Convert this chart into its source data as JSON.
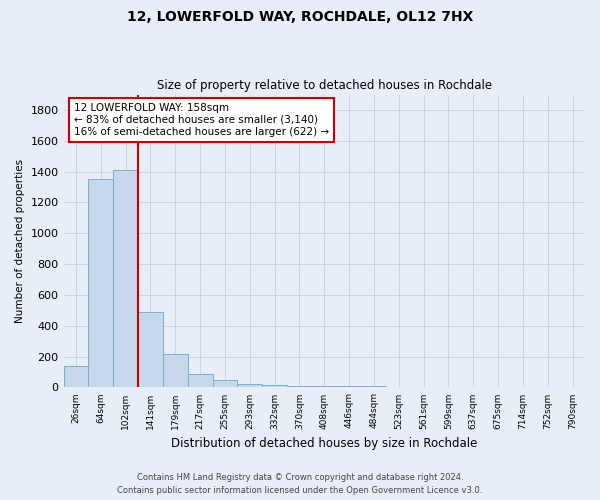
{
  "title": "12, LOWERFOLD WAY, ROCHDALE, OL12 7HX",
  "subtitle": "Size of property relative to detached houses in Rochdale",
  "xlabel": "Distribution of detached houses by size in Rochdale",
  "ylabel": "Number of detached properties",
  "footnote1": "Contains HM Land Registry data © Crown copyright and database right 2024.",
  "footnote2": "Contains public sector information licensed under the Open Government Licence v3.0.",
  "categories": [
    "26sqm",
    "64sqm",
    "102sqm",
    "141sqm",
    "179sqm",
    "217sqm",
    "255sqm",
    "293sqm",
    "332sqm",
    "370sqm",
    "408sqm",
    "446sqm",
    "484sqm",
    "523sqm",
    "561sqm",
    "599sqm",
    "637sqm",
    "675sqm",
    "714sqm",
    "752sqm",
    "790sqm"
  ],
  "values": [
    140,
    1350,
    1410,
    490,
    220,
    85,
    45,
    20,
    15,
    10,
    10,
    10,
    10,
    0,
    0,
    0,
    0,
    0,
    0,
    0,
    0
  ],
  "bar_color": "#c5d8ec",
  "bar_edge_color": "#7aaec8",
  "vline_x": 2.5,
  "vline_color": "#cc0000",
  "annotation_line1": "12 LOWERFOLD WAY: 158sqm",
  "annotation_line2": "← 83% of detached houses are smaller (3,140)",
  "annotation_line3": "16% of semi-detached houses are larger (622) →",
  "annotation_box_color": "#ffffff",
  "annotation_box_edge": "#cc0000",
  "ylim": [
    0,
    1900
  ],
  "yticks": [
    0,
    200,
    400,
    600,
    800,
    1000,
    1200,
    1400,
    1600,
    1800
  ],
  "background_color": "#e8eef8",
  "grid_color": "#c8d4e8"
}
